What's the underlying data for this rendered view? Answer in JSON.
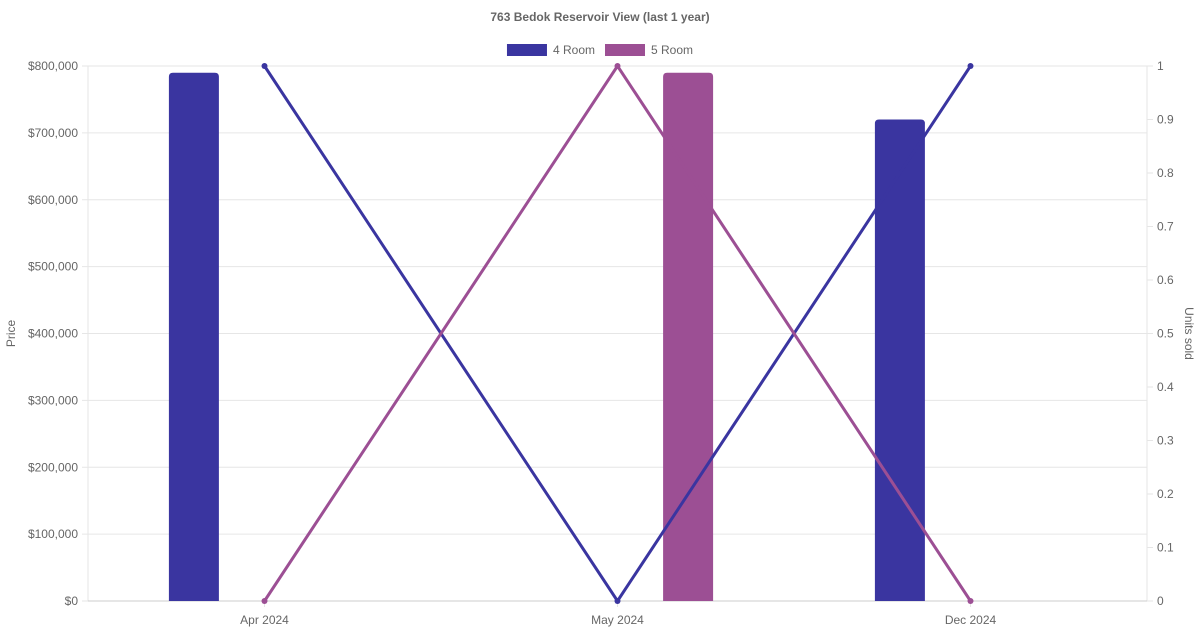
{
  "chart_data": {
    "type": "bar",
    "title": "763 Bedok Reservoir View (last 1 year)",
    "categories": [
      "Apr 2024",
      "May 2024",
      "Dec 2024"
    ],
    "y_left": {
      "label": "Price",
      "min": 0,
      "max": 800000,
      "ticks": [
        "$0",
        "$100,000",
        "$200,000",
        "$300,000",
        "$400,000",
        "$500,000",
        "$600,000",
        "$700,000",
        "$800,000"
      ]
    },
    "y_right": {
      "label": "Units sold",
      "min": 0,
      "max": 1,
      "ticks": [
        "0",
        "0.1",
        "0.2",
        "0.3",
        "0.4",
        "0.5",
        "0.6",
        "0.7",
        "0.8",
        "0.9",
        "1"
      ]
    },
    "series": [
      {
        "name": "4 Room",
        "color": "#3a35a0",
        "price": [
          790000,
          null,
          720000
        ],
        "units_sold": [
          1,
          0,
          1
        ]
      },
      {
        "name": "5 Room",
        "color": "#9c4f94",
        "price": [
          null,
          790000,
          null
        ],
        "units_sold": [
          0,
          1,
          0
        ]
      }
    ],
    "legend_position": "top-center",
    "grid": true
  }
}
